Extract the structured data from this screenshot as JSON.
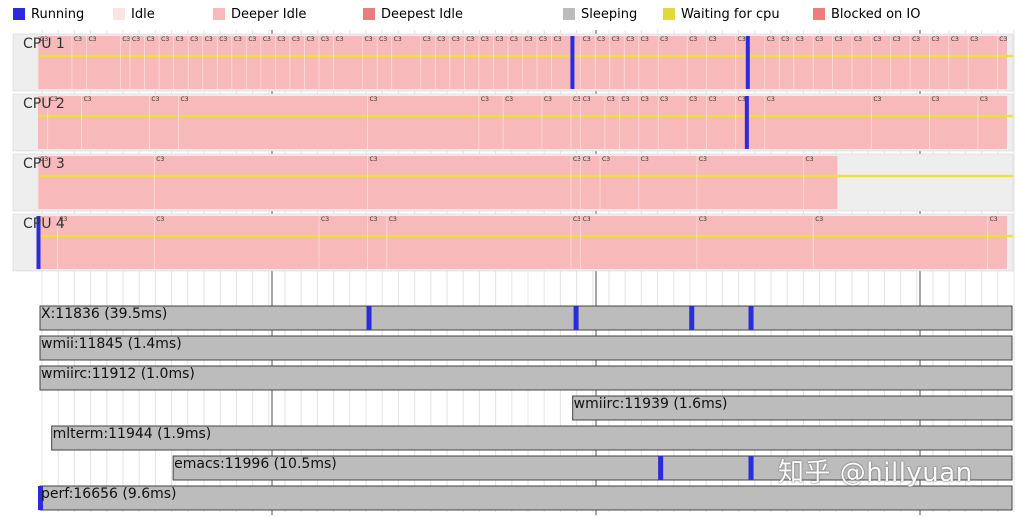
{
  "chart_data": {
    "type": "timeline",
    "legend": [
      {
        "label": "Running",
        "color": "#2b2bdc"
      },
      {
        "label": "Idle",
        "color": "#fbe3e3"
      },
      {
        "label": "Deeper Idle",
        "color": "#f7b9b9"
      },
      {
        "label": "Deepest Idle",
        "color": "#ef7c7c"
      },
      {
        "label": "Sleeping",
        "color": "#bcbcbc"
      },
      {
        "label": "Waiting for cpu",
        "color": "#e3d83a"
      },
      {
        "label": "Blocked on IO",
        "color": "#ef7c7c"
      }
    ],
    "cpus": [
      {
        "name": "CPU 1",
        "idle_end": 1.0,
        "running_marks": [
          0.551,
          0.732
        ],
        "c3_marks": [
          0.0,
          0.035,
          0.05,
          0.085,
          0.095,
          0.11,
          0.125,
          0.14,
          0.155,
          0.17,
          0.185,
          0.2,
          0.215,
          0.23,
          0.245,
          0.26,
          0.275,
          0.29,
          0.305,
          0.335,
          0.35,
          0.365,
          0.395,
          0.41,
          0.425,
          0.44,
          0.455,
          0.47,
          0.485,
          0.5,
          0.515,
          0.53,
          0.56,
          0.575,
          0.59,
          0.605,
          0.62,
          0.64,
          0.67,
          0.69,
          0.72,
          0.75,
          0.765,
          0.78,
          0.8,
          0.82,
          0.84,
          0.86,
          0.88,
          0.9,
          0.92,
          0.94,
          0.96,
          0.99
        ]
      },
      {
        "name": "CPU 2",
        "idle_end": 1.0,
        "running_marks": [
          0.731
        ],
        "c3_marks": [
          0.01,
          0.045,
          0.115,
          0.145,
          0.34,
          0.455,
          0.48,
          0.52,
          0.55,
          0.56,
          0.585,
          0.6,
          0.62,
          0.64,
          0.67,
          0.69,
          0.72,
          0.75,
          0.86,
          0.92,
          0.97
        ]
      },
      {
        "name": "CPU 3",
        "idle_end": 0.825,
        "running_marks": [],
        "c3_marks": [
          0.0,
          0.12,
          0.34,
          0.55,
          0.56,
          0.58,
          0.62,
          0.68,
          0.79
        ]
      },
      {
        "name": "CPU 4",
        "idle_end": 1.0,
        "running_marks": [
          0.0
        ],
        "c3_marks": [
          0.02,
          0.12,
          0.29,
          0.34,
          0.36,
          0.55,
          0.56,
          0.68,
          0.8,
          0.98
        ]
      }
    ],
    "processes": [
      {
        "label": "X:11836 (39.5ms)",
        "start": 0.0,
        "end": 1.0,
        "running_marks": [
          0.338,
          0.551,
          0.67,
          0.731
        ]
      },
      {
        "label": "wmii:11845 (1.4ms)",
        "start": 0.0,
        "end": 1.0,
        "running_marks": []
      },
      {
        "label": "wmiirc:11912 (1.0ms)",
        "start": 0.0,
        "end": 1.0,
        "running_marks": []
      },
      {
        "label": "wmiirc:11939 (1.6ms)",
        "start": 0.548,
        "end": 1.0,
        "running_marks": []
      },
      {
        "label": "mlterm:11944 (1.9ms)",
        "start": 0.012,
        "end": 1.0,
        "running_marks": []
      },
      {
        "label": "emacs:11996 (10.5ms)",
        "start": 0.137,
        "end": 1.0,
        "running_marks": [
          0.638,
          0.731
        ]
      },
      {
        "label": "perf:16656 (9.6ms)",
        "start": 0.0,
        "end": 1.0,
        "running_marks": [
          0.0
        ]
      }
    ],
    "c3_label": "C3"
  },
  "watermark": "知乎 @hillyuan"
}
